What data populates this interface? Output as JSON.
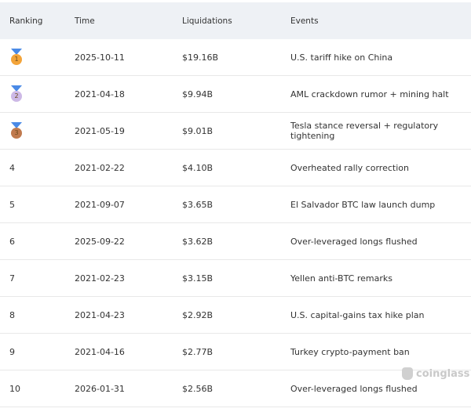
{
  "headers": [
    "Ranking",
    "Time",
    "Liquidations",
    "Events"
  ],
  "rows": [
    {
      "rank": "1",
      "medal": "gold",
      "time": "2025-10-11",
      "liq": "$19.16B",
      "event": "U.S. tariff hike on China"
    },
    {
      "rank": "2",
      "medal": "silver",
      "time": "2021-04-18",
      "liq": "$9.94B",
      "event": "AML crackdown rumor + mining halt"
    },
    {
      "rank": "3",
      "medal": "bronze",
      "time": "2021-05-19",
      "liq": "$9.01B",
      "event": "Tesla stance reversal + regulatory tightening"
    },
    {
      "rank": "4",
      "time": "2021-02-22",
      "liq": "$4.10B",
      "event": "Overheated rally correction"
    },
    {
      "rank": "5",
      "time": "2021-09-07",
      "liq": "$3.65B",
      "event": "El Salvador BTC law launch dump"
    },
    {
      "rank": "6",
      "time": "2025-09-22",
      "liq": "$3.62B",
      "event": "Over-leveraged longs flushed"
    },
    {
      "rank": "7",
      "time": "2021-02-23",
      "liq": "$3.15B",
      "event": "Yellen anti-BTC remarks"
    },
    {
      "rank": "8",
      "time": "2021-04-23",
      "liq": "$2.92B",
      "event": "U.S. capital-gains tax hike plan"
    },
    {
      "rank": "9",
      "time": "2021-04-16",
      "liq": "$2.77B",
      "event": "Turkey crypto-payment ban"
    },
    {
      "rank": "10",
      "time": "2026-01-31",
      "liq": "$2.56B",
      "event": "Over-leveraged longs flushed"
    }
  ],
  "medal_colors": {
    "gold": "#f3a43a",
    "silver": "#cdb9e6",
    "bronze": "#c07a4e"
  },
  "watermark": "coinglass"
}
